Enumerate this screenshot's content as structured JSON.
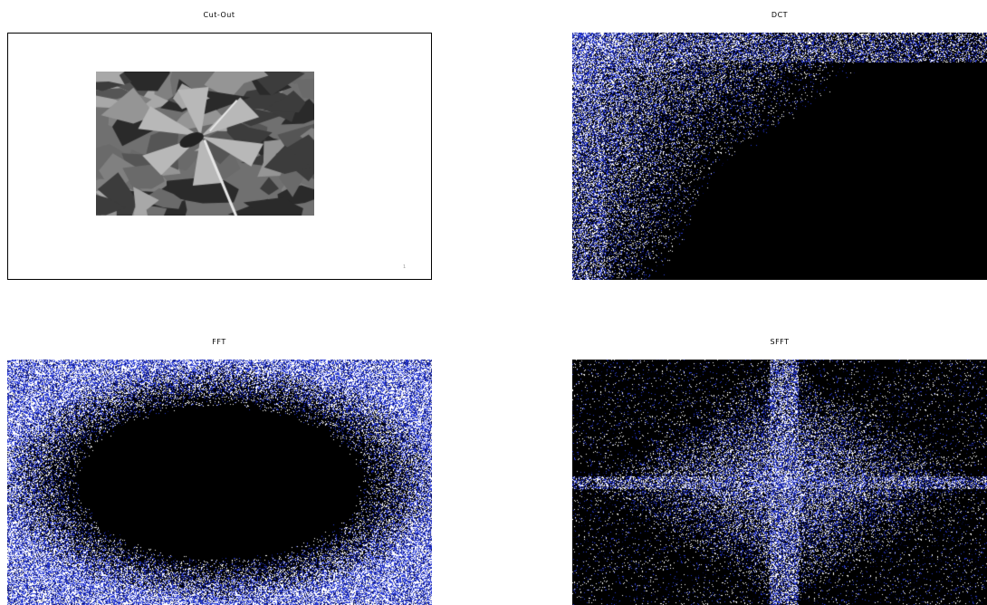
{
  "panels": {
    "cutout": {
      "title": "Cut-Out",
      "tick": "1"
    },
    "dct": {
      "title": "DCT"
    },
    "fft": {
      "title": "FFT"
    },
    "sfft": {
      "title": "SFFT"
    }
  },
  "colors": {
    "background": "#000000",
    "energy_high": "#ffffff",
    "energy_mid": "#2a3bd6",
    "energy_low": "#0a0f55",
    "frame": "#000000"
  }
}
